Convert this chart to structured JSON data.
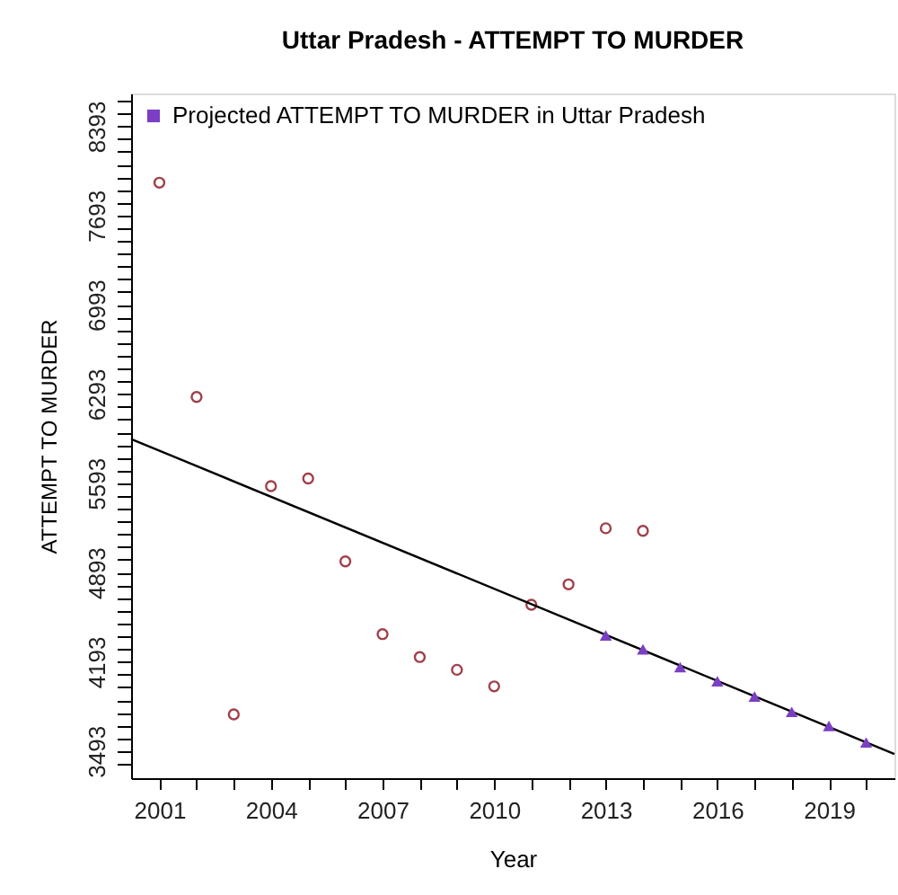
{
  "chart_data": {
    "type": "scatter",
    "title": "Uttar Pradesh  -  ATTEMPT TO MURDER",
    "xlabel": "Year",
    "ylabel": "ATTEMPT TO MURDER",
    "series": [
      {
        "marker": "circle",
        "color": "#a0404a",
        "x": [
          2001,
          2002,
          2003,
          2004,
          2005,
          2006,
          2007,
          2008,
          2009,
          2010,
          2011,
          2012,
          2013,
          2014
        ],
        "values": [
          7950,
          6270,
          3780,
          5570,
          5630,
          4980,
          4410,
          4230,
          4130,
          4000,
          4640,
          4800,
          5240,
          5220
        ]
      },
      {
        "type": "line",
        "color": "#000000",
        "x": [
          2000.24,
          2020.76
        ],
        "values": [
          5940,
          3470
        ]
      },
      {
        "marker": "triangle",
        "name": "Projected  ATTEMPT TO MURDER  in  Uttar Pradesh",
        "color": "#7b3fc4",
        "x": [
          2013,
          2014,
          2015,
          2016,
          2017,
          2018,
          2019,
          2020
        ],
        "values": [
          4400,
          4290,
          4150,
          4040,
          3920,
          3800,
          3690,
          3560
        ]
      }
    ],
    "xlim": [
      2000.24,
      2020.76
    ],
    "ylim": [
      3280,
      8650
    ],
    "xticks": [
      2001,
      {
        "value": 2002,
        "label": null
      },
      {
        "value": 2003,
        "label": null
      },
      2004,
      {
        "value": 2005,
        "label": null
      },
      {
        "value": 2006,
        "label": null
      },
      2007,
      {
        "value": 2008,
        "label": null
      },
      {
        "value": 2009,
        "label": null
      },
      2010,
      {
        "value": 2011,
        "label": null
      },
      {
        "value": 2012,
        "label": null
      },
      2013,
      {
        "value": 2014,
        "label": null
      },
      {
        "value": 2015,
        "label": null
      },
      2016,
      {
        "value": 2017,
        "label": null
      },
      {
        "value": 2018,
        "label": null
      },
      2019,
      {
        "value": 2020,
        "label": null
      }
    ],
    "yticks": [
      {
        "value": 3393,
        "label": null
      },
      3493,
      {
        "value": 3593,
        "label": null
      },
      {
        "value": 3693,
        "label": null
      },
      {
        "value": 3793,
        "label": null
      },
      {
        "value": 3893,
        "label": null
      },
      {
        "value": 3993,
        "label": null
      },
      {
        "value": 4093,
        "label": null
      },
      4193,
      {
        "value": 4293,
        "label": null
      },
      {
        "value": 4393,
        "label": null
      },
      {
        "value": 4493,
        "label": null
      },
      {
        "value": 4593,
        "label": null
      },
      {
        "value": 4693,
        "label": null
      },
      {
        "value": 4793,
        "label": null
      },
      4893,
      {
        "value": 4993,
        "label": null
      },
      {
        "value": 5093,
        "label": null
      },
      {
        "value": 5193,
        "label": null
      },
      {
        "value": 5293,
        "label": null
      },
      {
        "value": 5393,
        "label": null
      },
      {
        "value": 5493,
        "label": null
      },
      5593,
      {
        "value": 5693,
        "label": null
      },
      {
        "value": 5793,
        "label": null
      },
      {
        "value": 5893,
        "label": null
      },
      {
        "value": 5993,
        "label": null
      },
      {
        "value": 6093,
        "label": null
      },
      {
        "value": 6193,
        "label": null
      },
      6293,
      {
        "value": 6393,
        "label": null
      },
      {
        "value": 6493,
        "label": null
      },
      {
        "value": 6593,
        "label": null
      },
      {
        "value": 6693,
        "label": null
      },
      {
        "value": 6793,
        "label": null
      },
      {
        "value": 6893,
        "label": null
      },
      6993,
      {
        "value": 7093,
        "label": null
      },
      {
        "value": 7193,
        "label": null
      },
      {
        "value": 7293,
        "label": null
      },
      {
        "value": 7393,
        "label": null
      },
      {
        "value": 7493,
        "label": null
      },
      {
        "value": 7593,
        "label": null
      },
      7693,
      {
        "value": 7793,
        "label": null
      },
      {
        "value": 7893,
        "label": null
      },
      {
        "value": 7993,
        "label": null
      },
      {
        "value": 8093,
        "label": null
      },
      {
        "value": 8193,
        "label": null
      },
      {
        "value": 8293,
        "label": null
      },
      8393,
      {
        "value": 8493,
        "label": null
      },
      {
        "value": 8593,
        "label": null
      }
    ],
    "grid": false,
    "legend": "top left"
  }
}
